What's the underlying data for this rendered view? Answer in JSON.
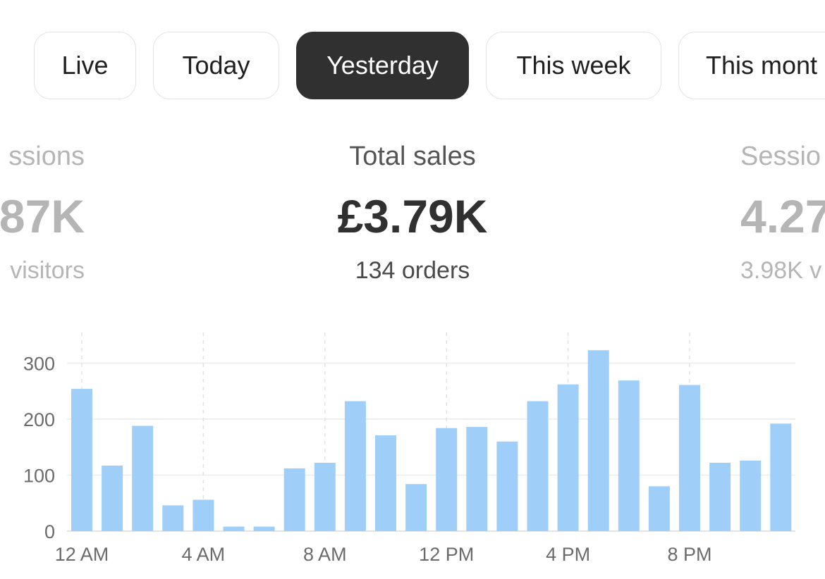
{
  "tabs": [
    {
      "label": "Live",
      "active": false
    },
    {
      "label": "Today",
      "active": false
    },
    {
      "label": "Yesterday",
      "active": true
    },
    {
      "label": "This week",
      "active": false
    },
    {
      "label": "This mont",
      "active": false
    }
  ],
  "metrics": {
    "left": {
      "label": "ssions",
      "value": "87K",
      "sub": "visitors"
    },
    "center": {
      "label": "Total sales",
      "value": "£3.79K",
      "sub": "134 orders"
    },
    "right": {
      "label": "Sessio",
      "value": "4.27",
      "sub": "3.98K v"
    }
  },
  "colors": {
    "bar": "#9fcff8",
    "active_tab": "#303030",
    "faded_text": "#b5b5b5"
  },
  "chart_data": {
    "type": "bar",
    "x": [
      "12 AM",
      "1 AM",
      "2 AM",
      "3 AM",
      "4 AM",
      "5 AM",
      "6 AM",
      "7 AM",
      "8 AM",
      "9 AM",
      "10 AM",
      "11 AM",
      "12 PM",
      "1 PM",
      "2 PM",
      "3 PM",
      "4 PM",
      "5 PM",
      "6 PM",
      "7 PM",
      "8 PM",
      "9 PM",
      "10 PM",
      "11 PM"
    ],
    "values": [
      254,
      117,
      188,
      46,
      56,
      8,
      8,
      112,
      122,
      232,
      171,
      84,
      184,
      186,
      160,
      232,
      262,
      323,
      269,
      80,
      261,
      122,
      126,
      192
    ],
    "x_tick_labels": [
      "12 AM",
      "4 AM",
      "8 AM",
      "12 PM",
      "4 PM",
      "8 PM"
    ],
    "y_ticks": [
      "300",
      "200",
      "100",
      "0"
    ],
    "y_tick_values": [
      300,
      200,
      100,
      0
    ],
    "ylim": [
      0,
      360
    ],
    "grid": true,
    "title": "",
    "xlabel": "",
    "ylabel": ""
  }
}
